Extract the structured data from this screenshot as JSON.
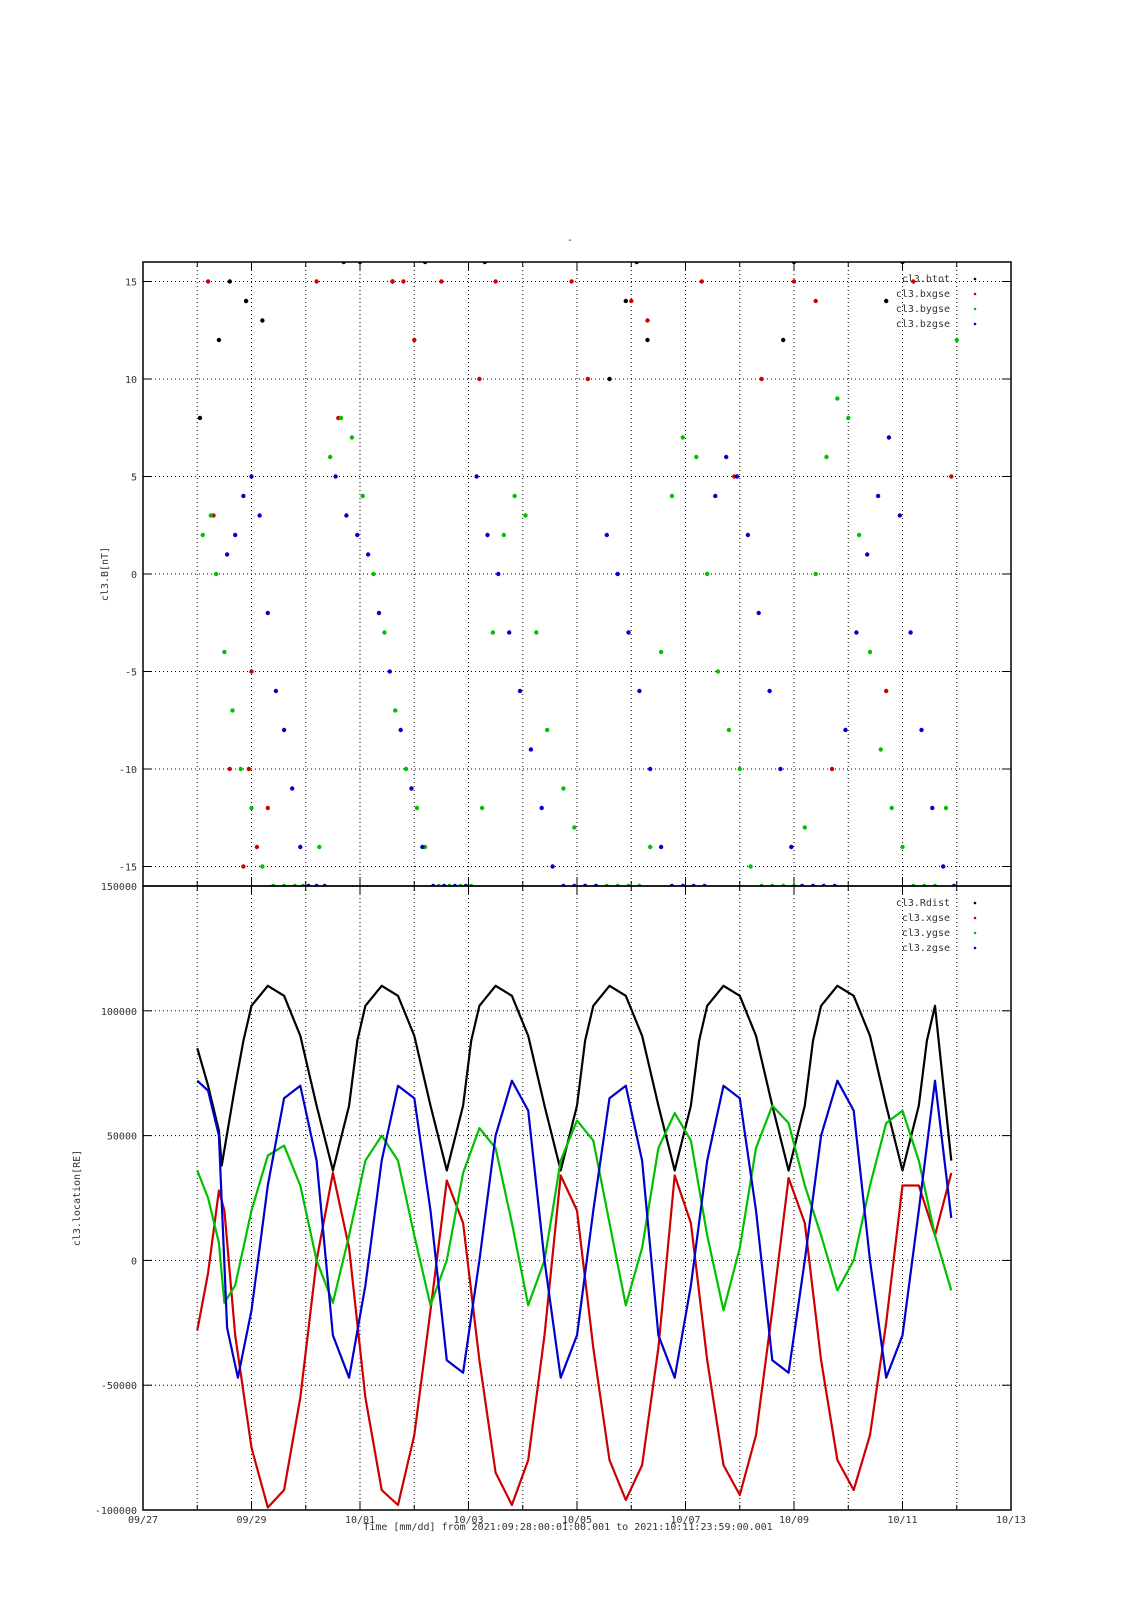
{
  "figure": {
    "title": "-",
    "xlabel": "Time [mm/dd]  from 2021:09:28:00:01:00.001  to  2021:10:11:23:59:00.001",
    "x_ticks": [
      "09/27",
      "09/29",
      "10/01",
      "10/03",
      "10/05",
      "10/07",
      "10/09",
      "10/11",
      "10/13"
    ],
    "x_tick_days": [
      0,
      2,
      4,
      6,
      8,
      10,
      12,
      14,
      16
    ],
    "x_minor_days": [
      1,
      3,
      5,
      7,
      9,
      11,
      13,
      15
    ],
    "x_range_days": [
      0,
      16
    ],
    "x_origin": "2021-09-27",
    "colors": {
      "black": "#000000",
      "red": "#cc0000",
      "green": "#00c000",
      "blue": "#0000cc"
    }
  },
  "chart_data": [
    {
      "type": "scatter",
      "ylabel": "cl3.B[nT]",
      "ylim": [
        -16,
        16
      ],
      "y_ticks": [
        "-15",
        "-10",
        "-5",
        "0",
        "5",
        "10",
        "15"
      ],
      "y_tick_values": [
        -15,
        -10,
        -5,
        0,
        5,
        10,
        15
      ],
      "grid": true,
      "legend_position": "top-right",
      "series": [
        {
          "name": "cl3.btot",
          "color": "#000000",
          "x": [
            1.05,
            1.4,
            1.6,
            1.9,
            2.2,
            3.7,
            4.0,
            4.6,
            5.2,
            6.3,
            8.6,
            8.9,
            9.1,
            9.3,
            11.8,
            12.0,
            13.7,
            14.0
          ],
          "y": [
            8,
            12,
            15,
            14,
            13,
            16,
            16,
            15,
            16,
            16,
            10,
            14,
            16,
            12,
            12,
            16,
            14,
            16
          ]
        },
        {
          "name": "cl3.bxgse",
          "color": "#cc0000",
          "x": [
            1.2,
            1.3,
            1.6,
            1.85,
            1.95,
            2.0,
            2.1,
            2.3,
            3.2,
            3.6,
            4.6,
            4.8,
            5.0,
            5.5,
            6.2,
            6.5,
            7.9,
            8.2,
            9.0,
            9.3,
            10.3,
            10.9,
            11.4,
            12.0,
            12.4,
            12.7,
            13.7,
            14.2,
            14.9
          ],
          "y": [
            15,
            3,
            -10,
            -15,
            -10,
            -5,
            -14,
            -12,
            15,
            8,
            15,
            15,
            12,
            15,
            10,
            15,
            15,
            10,
            14,
            13,
            15,
            5,
            10,
            15,
            14,
            -10,
            -6,
            15,
            5
          ]
        },
        {
          "name": "cl3.bygse",
          "color": "#00c000",
          "x": [
            1.1,
            1.25,
            1.35,
            1.5,
            1.65,
            1.8,
            2.0,
            2.2,
            2.4,
            2.6,
            2.8,
            2.95,
            3.25,
            3.45,
            3.65,
            3.85,
            4.05,
            4.25,
            4.45,
            4.65,
            4.85,
            5.05,
            5.2,
            5.45,
            5.65,
            5.85,
            6.05,
            6.25,
            6.45,
            6.65,
            6.85,
            7.05,
            7.25,
            7.45,
            7.75,
            7.95,
            8.15,
            8.35,
            8.55,
            8.75,
            8.95,
            9.15,
            9.35,
            9.55,
            9.75,
            9.95,
            10.2,
            10.4,
            10.6,
            10.8,
            11.0,
            11.2,
            11.4,
            11.6,
            11.8,
            12.0,
            12.2,
            12.4,
            12.6,
            12.8,
            13.0,
            13.2,
            13.4,
            13.6,
            13.8,
            14.0,
            14.2,
            14.4,
            14.6,
            14.8,
            15.0
          ],
          "y": [
            2,
            3,
            0,
            -4,
            -7,
            -10,
            -12,
            -15,
            -16,
            -16,
            -16,
            -16,
            -14,
            6,
            8,
            7,
            4,
            0,
            -3,
            -7,
            -10,
            -12,
            -14,
            -16,
            -16,
            -16,
            -16,
            -12,
            -3,
            2,
            4,
            3,
            -3,
            -8,
            -11,
            -13,
            -16,
            -16,
            -16,
            -16,
            -16,
            -16,
            -14,
            -4,
            4,
            7,
            6,
            0,
            -5,
            -8,
            -10,
            -15,
            -16,
            -16,
            -16,
            -16,
            -13,
            0,
            6,
            9,
            8,
            2,
            -4,
            -9,
            -12,
            -14,
            -16,
            -16,
            -16,
            -12,
            12
          ]
        },
        {
          "name": "cl3.bzgse",
          "color": "#0000cc",
          "x": [
            1.55,
            1.7,
            1.85,
            2.0,
            2.15,
            2.3,
            2.45,
            2.6,
            2.75,
            2.9,
            3.05,
            3.2,
            3.35,
            3.55,
            3.75,
            3.95,
            4.15,
            4.35,
            4.55,
            4.75,
            4.95,
            5.15,
            5.35,
            5.55,
            5.75,
            5.95,
            6.15,
            6.35,
            6.55,
            6.75,
            6.95,
            7.15,
            7.35,
            7.55,
            7.75,
            7.95,
            8.15,
            8.35,
            8.55,
            8.75,
            8.95,
            9.15,
            9.35,
            9.55,
            9.75,
            9.95,
            10.15,
            10.35,
            10.55,
            10.75,
            10.95,
            11.15,
            11.35,
            11.55,
            11.75,
            11.95,
            12.15,
            12.35,
            12.55,
            12.75,
            12.95,
            13.15,
            13.35,
            13.55,
            13.75,
            13.95,
            14.15,
            14.35,
            14.55,
            14.75,
            14.95
          ],
          "y": [
            1,
            2,
            4,
            5,
            3,
            -2,
            -6,
            -8,
            -11,
            -14,
            -16,
            -16,
            -16,
            5,
            3,
            2,
            1,
            -2,
            -5,
            -8,
            -11,
            -14,
            -16,
            -16,
            -16,
            -16,
            5,
            2,
            0,
            -3,
            -6,
            -9,
            -12,
            -15,
            -16,
            -16,
            -16,
            -16,
            2,
            0,
            -3,
            -6,
            -10,
            -14,
            -16,
            -16,
            -16,
            -16,
            4,
            6,
            5,
            2,
            -2,
            -6,
            -10,
            -14,
            -16,
            -16,
            -16,
            -16,
            -8,
            -3,
            1,
            4,
            7,
            3,
            -3,
            -8,
            -12,
            -15,
            -16
          ]
        }
      ]
    },
    {
      "type": "line",
      "ylabel": "cl3.location[RE]",
      "ylim": [
        -100000,
        150000
      ],
      "y_ticks": [
        "-100000",
        "-50000",
        "0",
        "50000",
        "100000",
        "150000"
      ],
      "y_tick_values": [
        -100000,
        -50000,
        0,
        50000,
        100000,
        150000
      ],
      "grid": true,
      "legend_position": "top-right",
      "series": [
        {
          "name": "cl3.Rdist",
          "color": "#000000",
          "x": [
            1.0,
            1.2,
            1.4,
            1.45,
            1.7,
            1.85,
            2.0,
            2.3,
            2.6,
            2.9,
            3.2,
            3.5,
            3.8,
            3.95,
            4.1,
            4.4,
            4.7,
            5.0,
            5.3,
            5.6,
            5.9,
            6.05,
            6.2,
            6.5,
            6.8,
            7.1,
            7.4,
            7.7,
            8.0,
            8.15,
            8.3,
            8.6,
            8.9,
            9.2,
            9.5,
            9.8,
            10.1,
            10.25,
            10.4,
            10.7,
            11.0,
            11.3,
            11.6,
            11.9,
            12.2,
            12.35,
            12.5,
            12.8,
            13.1,
            13.4,
            13.7,
            14.0,
            14.3,
            14.45,
            14.6,
            14.9
          ],
          "y": [
            85000,
            70000,
            52000,
            38000,
            70000,
            88000,
            102000,
            110000,
            106000,
            90000,
            62000,
            36000,
            62000,
            88000,
            102000,
            110000,
            106000,
            90000,
            62000,
            36000,
            62000,
            88000,
            102000,
            110000,
            106000,
            90000,
            62000,
            36000,
            62000,
            88000,
            102000,
            110000,
            106000,
            90000,
            62000,
            36000,
            62000,
            88000,
            102000,
            110000,
            106000,
            90000,
            62000,
            36000,
            62000,
            88000,
            102000,
            110000,
            106000,
            90000,
            62000,
            36000,
            62000,
            88000,
            102000,
            40000
          ]
        },
        {
          "name": "cl3.xgse",
          "color": "#cc0000",
          "x": [
            1.0,
            1.2,
            1.4,
            1.5,
            1.7,
            2.0,
            2.3,
            2.6,
            2.9,
            3.2,
            3.5,
            3.8,
            4.1,
            4.4,
            4.7,
            5.0,
            5.3,
            5.6,
            5.9,
            6.2,
            6.5,
            6.8,
            7.1,
            7.4,
            7.7,
            8.0,
            8.3,
            8.6,
            8.9,
            9.2,
            9.5,
            9.8,
            10.1,
            10.4,
            10.7,
            11.0,
            11.3,
            11.6,
            11.9,
            12.2,
            12.5,
            12.8,
            13.1,
            13.4,
            13.7,
            14.0,
            14.3,
            14.6,
            14.9
          ],
          "y": [
            -28000,
            -5000,
            28000,
            20000,
            -30000,
            -75000,
            -99000,
            -92000,
            -55000,
            0,
            35000,
            5000,
            -55000,
            -92000,
            -98000,
            -70000,
            -20000,
            32000,
            15000,
            -40000,
            -85000,
            -98000,
            -80000,
            -30000,
            34000,
            20000,
            -35000,
            -80000,
            -96000,
            -82000,
            -35000,
            34000,
            15000,
            -40000,
            -82000,
            -94000,
            -70000,
            -20000,
            33000,
            15000,
            -40000,
            -80000,
            -92000,
            -70000,
            -25000,
            30000,
            30000,
            10000,
            35000
          ]
        },
        {
          "name": "cl3.ygse",
          "color": "#00c000",
          "x": [
            1.0,
            1.2,
            1.4,
            1.5,
            1.7,
            2.0,
            2.3,
            2.6,
            2.9,
            3.2,
            3.5,
            3.8,
            4.1,
            4.4,
            4.7,
            5.0,
            5.3,
            5.6,
            5.9,
            6.2,
            6.5,
            6.8,
            7.1,
            7.4,
            7.7,
            8.0,
            8.3,
            8.6,
            8.9,
            9.2,
            9.5,
            9.8,
            10.1,
            10.4,
            10.7,
            11.0,
            11.3,
            11.6,
            11.9,
            12.2,
            12.5,
            12.8,
            13.1,
            13.4,
            13.7,
            14.0,
            14.3,
            14.6,
            14.9
          ],
          "y": [
            36000,
            25000,
            7000,
            -17000,
            -10000,
            20000,
            42000,
            46000,
            30000,
            0,
            -17000,
            10000,
            40000,
            50000,
            40000,
            10000,
            -18000,
            0,
            35000,
            53000,
            45000,
            15000,
            -18000,
            0,
            40000,
            56000,
            48000,
            15000,
            -18000,
            5000,
            45000,
            59000,
            48000,
            10000,
            -20000,
            5000,
            45000,
            62000,
            55000,
            30000,
            10000,
            -12000,
            0,
            30000,
            55000,
            60000,
            40000,
            10000,
            -12000
          ]
        },
        {
          "name": "cl3.zgse",
          "color": "#0000cc",
          "x": [
            1.0,
            1.2,
            1.4,
            1.55,
            1.75,
            2.0,
            2.3,
            2.6,
            2.9,
            3.2,
            3.5,
            3.8,
            4.1,
            4.4,
            4.7,
            5.0,
            5.3,
            5.6,
            5.9,
            6.2,
            6.5,
            6.8,
            7.1,
            7.4,
            7.7,
            8.0,
            8.3,
            8.6,
            8.9,
            9.2,
            9.5,
            9.8,
            10.1,
            10.4,
            10.7,
            11.0,
            11.3,
            11.6,
            11.9,
            12.2,
            12.5,
            12.8,
            13.1,
            13.4,
            13.7,
            14.0,
            14.3,
            14.6,
            14.9
          ],
          "y": [
            72000,
            68000,
            50000,
            -27000,
            -47000,
            -20000,
            30000,
            65000,
            70000,
            40000,
            -30000,
            -47000,
            -10000,
            40000,
            70000,
            65000,
            20000,
            -40000,
            -45000,
            0,
            50000,
            72000,
            60000,
            0,
            -47000,
            -30000,
            20000,
            65000,
            70000,
            40000,
            -30000,
            -47000,
            -10000,
            40000,
            70000,
            65000,
            20000,
            -40000,
            -45000,
            0,
            50000,
            72000,
            60000,
            0,
            -47000,
            -30000,
            20000,
            72000,
            17000
          ]
        }
      ]
    }
  ]
}
